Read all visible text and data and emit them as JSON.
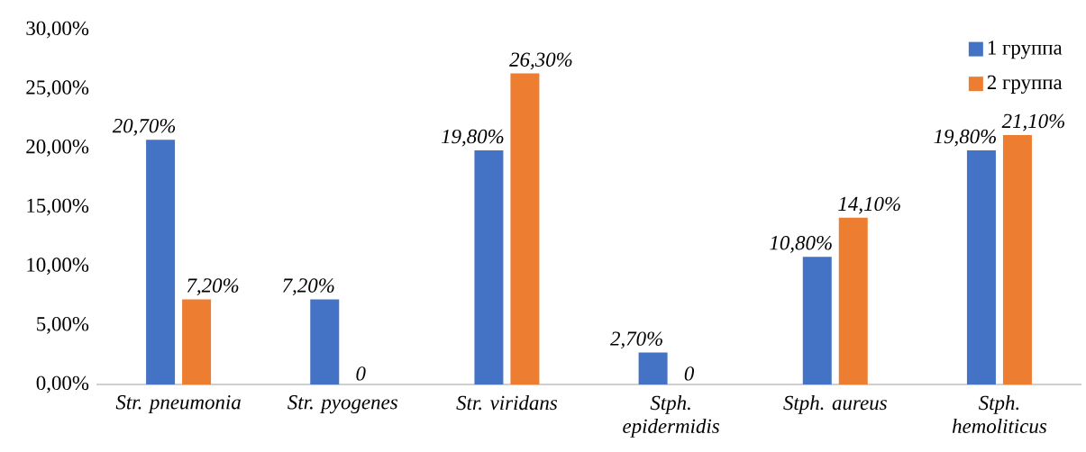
{
  "chart_data": {
    "type": "bar",
    "categories": [
      "Str. pneumonia",
      "Str. pyogenes",
      "Str. viridans",
      "Stph. epidermidis",
      "Stph. aureus",
      "Stph. hemoliticus"
    ],
    "series": [
      {
        "name": "1 группа",
        "color": "#4472c4",
        "values": [
          20.7,
          7.2,
          19.8,
          2.7,
          10.8,
          19.8
        ],
        "value_labels": [
          "20,70%",
          "7,20%",
          "19,80%",
          "2,70%",
          "10,80%",
          "19,80%"
        ]
      },
      {
        "name": "2 группа",
        "color": "#ed7d31",
        "values": [
          7.2,
          0,
          26.3,
          0,
          14.1,
          21.1
        ],
        "value_labels": [
          "7,20%",
          "0",
          "26,30%",
          "0",
          "14,10%",
          "21,10%"
        ]
      }
    ],
    "ylim": [
      0,
      30
    ],
    "yticks": [
      {
        "value": 0,
        "label": "0,00%"
      },
      {
        "value": 5,
        "label": "5,00%"
      },
      {
        "value": 10,
        "label": "10,00%"
      },
      {
        "value": 15,
        "label": "15,00%"
      },
      {
        "value": 20,
        "label": "20,00%"
      },
      {
        "value": 25,
        "label": "25,00%"
      },
      {
        "value": 30,
        "label": "30,00%"
      }
    ],
    "legend": "top right"
  }
}
